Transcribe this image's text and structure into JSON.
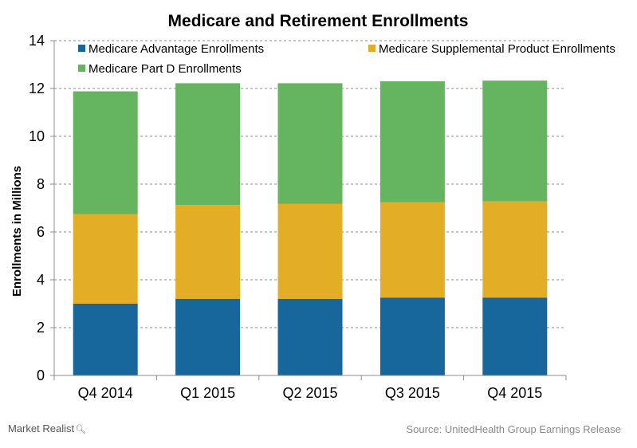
{
  "chart_data": {
    "type": "bar",
    "stacked": true,
    "title": "Medicare and Retirement Enrollments",
    "xlabel": "",
    "ylabel": "Enrollments in Millions",
    "ylim": [
      0,
      14
    ],
    "yticks": [
      0,
      2,
      4,
      6,
      8,
      10,
      12,
      14
    ],
    "grid": true,
    "legend_position": "top",
    "categories": [
      "Q4 2014",
      "Q1 2015",
      "Q2 2015",
      "Q3 2015",
      "Q4 2015"
    ],
    "series": [
      {
        "name": "Medicare Advantage Enrollments",
        "color": "#17679c",
        "values": [
          3.0,
          3.2,
          3.2,
          3.25,
          3.25
        ]
      },
      {
        "name": "Medicare Supplemental Product Enrollments",
        "color": "#e3ad26",
        "values": [
          3.75,
          3.93,
          3.97,
          4.0,
          4.03
        ]
      },
      {
        "name": "Medicare Part D Enrollments",
        "color": "#65b45f",
        "values": [
          5.13,
          5.09,
          5.05,
          5.05,
          5.05
        ]
      }
    ]
  },
  "footer": {
    "brand": "Market Realist",
    "source": "Source: UnitedHealth Group Earnings Release"
  }
}
